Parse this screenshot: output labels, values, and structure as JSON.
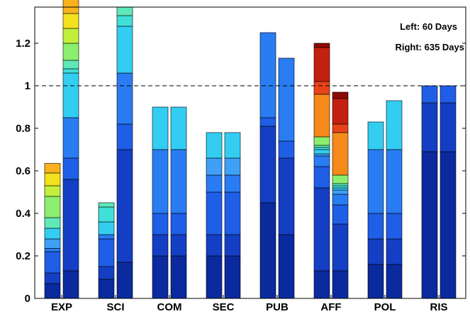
{
  "chart_data": {
    "type": "bar",
    "stacked": true,
    "categories": [
      "EXP",
      "SCI",
      "COM",
      "SEC",
      "PUB",
      "AFF",
      "POL",
      "RIS"
    ],
    "ylim": [
      0,
      1.37
    ],
    "yticks": [
      0,
      0.2,
      0.4,
      0.6,
      0.8,
      1,
      1.2
    ],
    "ytick_labels": [
      "0",
      "0.2",
      "0.4",
      "0.6",
      "0.8",
      "1",
      "1.2"
    ],
    "reference_line": {
      "y": 1,
      "style": "dashed"
    },
    "grid": false,
    "legend_position": "top-right",
    "annotations": [
      "Left: 60 Days",
      "Right: 635 Days"
    ],
    "bars": [
      {
        "category": "EXP",
        "side": "left",
        "segments": [
          {
            "value": 0.07,
            "color": "#0a2a9e"
          },
          {
            "value": 0.05,
            "color": "#143fc4"
          },
          {
            "value": 0.1,
            "color": "#1f5ee6"
          },
          {
            "value": 0.015,
            "color": "#2a7cf2"
          },
          {
            "value": 0.045,
            "color": "#3fa0f5"
          },
          {
            "value": 0.05,
            "color": "#33cdf2"
          },
          {
            "value": 0.05,
            "color": "#5fe8b8"
          },
          {
            "value": 0.1,
            "color": "#8cee6e"
          },
          {
            "value": 0.05,
            "color": "#c2ee3c"
          },
          {
            "value": 0.06,
            "color": "#f2e21b"
          },
          {
            "value": 0.045,
            "color": "#f9b21e"
          }
        ]
      },
      {
        "category": "EXP",
        "side": "right",
        "segments": [
          {
            "value": 0.13,
            "color": "#0a2a9e"
          },
          {
            "value": 0.43,
            "color": "#143fc4"
          },
          {
            "value": 0.1,
            "color": "#1f5ee6"
          },
          {
            "value": 0.19,
            "color": "#2a7cf2"
          },
          {
            "value": 0.21,
            "color": "#33cdf2"
          },
          {
            "value": 0.02,
            "color": "#3fe0d8"
          },
          {
            "value": 0.04,
            "color": "#5fe8b8"
          },
          {
            "value": 0.08,
            "color": "#8cee6e"
          },
          {
            "value": 0.07,
            "color": "#c2ee3c"
          },
          {
            "value": 0.07,
            "color": "#f2e21b"
          },
          {
            "value": 0.08,
            "color": "#f9b21e"
          }
        ]
      },
      {
        "category": "SCI",
        "side": "left",
        "segments": [
          {
            "value": 0.09,
            "color": "#0a2a9e"
          },
          {
            "value": 0.06,
            "color": "#143fc4"
          },
          {
            "value": 0.13,
            "color": "#1f5ee6"
          },
          {
            "value": 0.02,
            "color": "#2a7cf2"
          },
          {
            "value": 0.06,
            "color": "#33cdf2"
          },
          {
            "value": 0.07,
            "color": "#3fe0d8"
          },
          {
            "value": 0.02,
            "color": "#5fe8b8"
          }
        ]
      },
      {
        "category": "SCI",
        "side": "right",
        "segments": [
          {
            "value": 0.17,
            "color": "#0a2a9e"
          },
          {
            "value": 0.53,
            "color": "#143fc4"
          },
          {
            "value": 0.12,
            "color": "#1f5ee6"
          },
          {
            "value": 0.24,
            "color": "#2a7cf2"
          },
          {
            "value": 0.22,
            "color": "#33cdf2"
          },
          {
            "value": 0.05,
            "color": "#3fe0d8"
          },
          {
            "value": 0.04,
            "color": "#5fe8b8"
          }
        ]
      },
      {
        "category": "COM",
        "side": "left",
        "segments": [
          {
            "value": 0.2,
            "color": "#0a2a9e"
          },
          {
            "value": 0.1,
            "color": "#143fc4"
          },
          {
            "value": 0.1,
            "color": "#1f5ee6"
          },
          {
            "value": 0.3,
            "color": "#2a7cf2"
          },
          {
            "value": 0.2,
            "color": "#33cdf2"
          }
        ]
      },
      {
        "category": "COM",
        "side": "right",
        "segments": [
          {
            "value": 0.2,
            "color": "#0a2a9e"
          },
          {
            "value": 0.1,
            "color": "#143fc4"
          },
          {
            "value": 0.1,
            "color": "#1f5ee6"
          },
          {
            "value": 0.3,
            "color": "#2a7cf2"
          },
          {
            "value": 0.2,
            "color": "#33cdf2"
          }
        ]
      },
      {
        "category": "SEC",
        "side": "left",
        "segments": [
          {
            "value": 0.2,
            "color": "#0a2a9e"
          },
          {
            "value": 0.1,
            "color": "#143fc4"
          },
          {
            "value": 0.2,
            "color": "#1f5ee6"
          },
          {
            "value": 0.08,
            "color": "#2a7cf2"
          },
          {
            "value": 0.08,
            "color": "#3fa0f5"
          },
          {
            "value": 0.12,
            "color": "#33cdf2"
          }
        ]
      },
      {
        "category": "SEC",
        "side": "right",
        "segments": [
          {
            "value": 0.2,
            "color": "#0a2a9e"
          },
          {
            "value": 0.1,
            "color": "#143fc4"
          },
          {
            "value": 0.2,
            "color": "#1f5ee6"
          },
          {
            "value": 0.08,
            "color": "#2a7cf2"
          },
          {
            "value": 0.08,
            "color": "#3fa0f5"
          },
          {
            "value": 0.12,
            "color": "#33cdf2"
          }
        ]
      },
      {
        "category": "PUB",
        "side": "left",
        "segments": [
          {
            "value": 0.45,
            "color": "#0a2a9e"
          },
          {
            "value": 0.36,
            "color": "#143fc4"
          },
          {
            "value": 0.04,
            "color": "#1f5ee6"
          },
          {
            "value": 0.4,
            "color": "#2a7cf2"
          }
        ]
      },
      {
        "category": "PUB",
        "side": "right",
        "segments": [
          {
            "value": 0.3,
            "color": "#0a2a9e"
          },
          {
            "value": 0.36,
            "color": "#143fc4"
          },
          {
            "value": 0.08,
            "color": "#1f5ee6"
          },
          {
            "value": 0.39,
            "color": "#2a7cf2"
          }
        ]
      },
      {
        "category": "AFF",
        "side": "left",
        "segments": [
          {
            "value": 0.13,
            "color": "#0a2a9e"
          },
          {
            "value": 0.39,
            "color": "#143fc4"
          },
          {
            "value": 0.1,
            "color": "#1f5ee6"
          },
          {
            "value": 0.05,
            "color": "#2a7cf2"
          },
          {
            "value": 0.01,
            "color": "#3fa0f5"
          },
          {
            "value": 0.02,
            "color": "#33cdf2"
          },
          {
            "value": 0.01,
            "color": "#3fe0d8"
          },
          {
            "value": 0.01,
            "color": "#5fe8b8"
          },
          {
            "value": 0.04,
            "color": "#8cee6e"
          },
          {
            "value": 0.2,
            "color": "#f58a1a"
          },
          {
            "value": 0.06,
            "color": "#e8421a"
          },
          {
            "value": 0.16,
            "color": "#c4200f"
          },
          {
            "value": 0.02,
            "color": "#8c0a06"
          }
        ]
      },
      {
        "category": "AFF",
        "side": "right",
        "segments": [
          {
            "value": 0.13,
            "color": "#0a2a9e"
          },
          {
            "value": 0.22,
            "color": "#143fc4"
          },
          {
            "value": 0.09,
            "color": "#1f5ee6"
          },
          {
            "value": 0.05,
            "color": "#2a7cf2"
          },
          {
            "value": 0.02,
            "color": "#3fa0f5"
          },
          {
            "value": 0.01,
            "color": "#33cdf2"
          },
          {
            "value": 0.01,
            "color": "#3fe0d8"
          },
          {
            "value": 0.01,
            "color": "#5fe8b8"
          },
          {
            "value": 0.04,
            "color": "#8cee6e"
          },
          {
            "value": 0.2,
            "color": "#f58a1a"
          },
          {
            "value": 0.04,
            "color": "#e8421a"
          },
          {
            "value": 0.12,
            "color": "#c4200f"
          },
          {
            "value": 0.03,
            "color": "#8c0a06"
          }
        ]
      },
      {
        "category": "POL",
        "side": "left",
        "segments": [
          {
            "value": 0.16,
            "color": "#0a2a9e"
          },
          {
            "value": 0.12,
            "color": "#143fc4"
          },
          {
            "value": 0.12,
            "color": "#1f5ee6"
          },
          {
            "value": 0.3,
            "color": "#2a7cf2"
          },
          {
            "value": 0.13,
            "color": "#33cdf2"
          }
        ]
      },
      {
        "category": "POL",
        "side": "right",
        "segments": [
          {
            "value": 0.16,
            "color": "#0a2a9e"
          },
          {
            "value": 0.12,
            "color": "#143fc4"
          },
          {
            "value": 0.12,
            "color": "#1f5ee6"
          },
          {
            "value": 0.3,
            "color": "#2a7cf2"
          },
          {
            "value": 0.23,
            "color": "#33cdf2"
          }
        ]
      },
      {
        "category": "RIS",
        "side": "left",
        "segments": [
          {
            "value": 0.69,
            "color": "#0a2a9e"
          },
          {
            "value": 0.23,
            "color": "#143fc4"
          },
          {
            "value": 0.08,
            "color": "#1f5ee6"
          }
        ]
      },
      {
        "category": "RIS",
        "side": "right",
        "segments": [
          {
            "value": 0.69,
            "color": "#0a2a9e"
          },
          {
            "value": 0.23,
            "color": "#143fc4"
          },
          {
            "value": 0.08,
            "color": "#1f5ee6"
          }
        ]
      }
    ]
  }
}
